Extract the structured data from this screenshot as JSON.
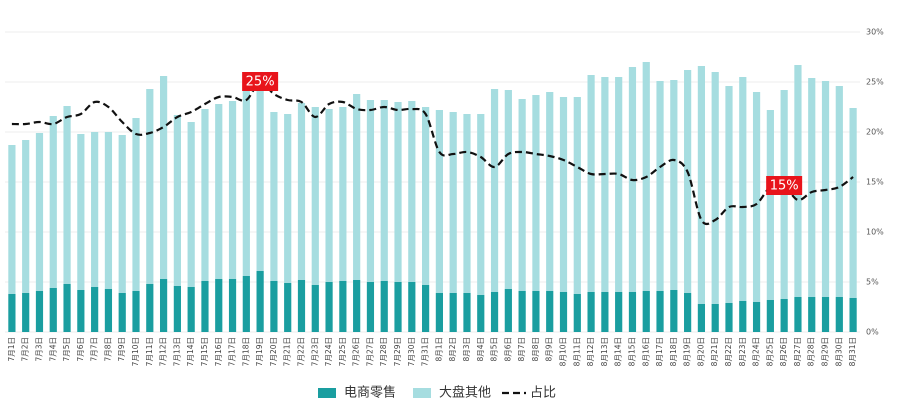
{
  "chart_data": {
    "type": "stacked-bar-line",
    "categories": [
      "7月1日",
      "7月2日",
      "7月3日",
      "7月4日",
      "7月5日",
      "7月6日",
      "7月7日",
      "7月8日",
      "7月9日",
      "7月10日",
      "7月11日",
      "7月12日",
      "7月13日",
      "7月14日",
      "7月15日",
      "7月16日",
      "7月17日",
      "7月18日",
      "7月19日",
      "7月20日",
      "7月21日",
      "7月22日",
      "7月23日",
      "7月24日",
      "7月25日",
      "7月26日",
      "7月27日",
      "7月28日",
      "7月29日",
      "7月30日",
      "7月31日",
      "8月1日",
      "8月2日",
      "8月3日",
      "8月4日",
      "8月5日",
      "8月6日",
      "8月7日",
      "8月8日",
      "8月9日",
      "8月10日",
      "8月11日",
      "8月12日",
      "8月13日",
      "8月14日",
      "8月15日",
      "8月16日",
      "8月17日",
      "8月18日",
      "8月19日",
      "8月20日",
      "8月21日",
      "8月22日",
      "8月23日",
      "8月24日",
      "8月25日",
      "8月26日",
      "8月27日",
      "8月28日",
      "8月29日",
      "8月30日",
      "8月31日"
    ],
    "series": [
      {
        "name": "电商零售",
        "color": "#1a9ea0",
        "values": [
          38,
          39,
          41,
          44,
          48,
          42,
          45,
          43,
          39,
          41,
          48,
          53,
          46,
          45,
          51,
          53,
          53,
          56,
          61,
          51,
          49,
          52,
          47,
          50,
          51,
          52,
          50,
          51,
          50,
          50,
          47,
          39,
          39,
          39,
          37,
          40,
          43,
          41,
          41,
          41,
          40,
          38,
          40,
          40,
          40,
          40,
          41,
          41,
          42,
          39,
          28,
          28,
          29,
          31,
          30,
          32,
          33,
          35,
          35,
          35,
          35,
          34
        ]
      },
      {
        "name": "大盘其他",
        "color": "#a6dde0",
        "values": [
          149,
          153,
          158,
          172,
          178,
          156,
          155,
          157,
          158,
          173,
          195,
          203,
          171,
          165,
          172,
          175,
          178,
          188,
          189,
          169,
          169,
          177,
          178,
          173,
          174,
          186,
          182,
          181,
          180,
          181,
          178,
          183,
          181,
          179,
          181,
          203,
          199,
          192,
          196,
          199,
          195,
          197,
          217,
          215,
          215,
          225,
          229,
          210,
          210,
          223,
          238,
          232,
          217,
          224,
          210,
          190,
          209,
          232,
          219,
          216,
          211,
          190
        ]
      },
      {
        "name": "占比",
        "color": "#111111",
        "axis": "y2",
        "values": [
          20.8,
          20.8,
          21.0,
          20.8,
          21.5,
          21.8,
          23.0,
          22.5,
          21.0,
          19.8,
          19.9,
          20.5,
          21.5,
          22.0,
          22.8,
          23.5,
          23.5,
          23.2,
          25.0,
          23.8,
          23.2,
          23.0,
          21.5,
          22.8,
          23.0,
          22.3,
          22.2,
          22.5,
          22.2,
          22.3,
          21.8,
          18.0,
          17.8,
          18.0,
          17.5,
          16.5,
          17.8,
          18.0,
          17.8,
          17.6,
          17.2,
          16.5,
          15.8,
          15.8,
          15.8,
          15.2,
          15.5,
          16.5,
          17.2,
          16.0,
          11.2,
          11.2,
          12.5,
          12.5,
          12.8,
          14.5,
          14.6,
          13.2,
          14.0,
          14.2,
          14.5,
          15.5
        ],
        "value_labels": [
          null,
          null,
          null,
          null,
          null,
          null,
          null,
          null,
          null,
          null,
          null,
          null,
          null,
          null,
          null,
          null,
          null,
          null,
          "25%",
          null,
          null,
          null,
          null,
          null,
          null,
          null,
          null,
          null,
          null,
          null,
          null,
          null,
          null,
          null,
          null,
          null,
          null,
          null,
          null,
          null,
          null,
          null,
          null,
          null,
          null,
          null,
          null,
          null,
          null,
          null,
          null,
          null,
          null,
          null,
          null,
          null,
          "15%",
          null,
          null,
          null,
          null,
          null
        ]
      }
    ],
    "ylim": [
      0,
      300
    ],
    "y2lim": [
      0,
      30
    ],
    "y2ticks": [
      {
        "value": 0,
        "label": "0%"
      },
      {
        "value": 5,
        "label": "5%"
      },
      {
        "value": 10,
        "label": "10%"
      },
      {
        "value": 15,
        "label": "15%"
      },
      {
        "value": 20,
        "label": "20%"
      },
      {
        "value": 25,
        "label": "25%"
      },
      {
        "value": 30,
        "label": "30%"
      }
    ],
    "grid": true
  }
}
